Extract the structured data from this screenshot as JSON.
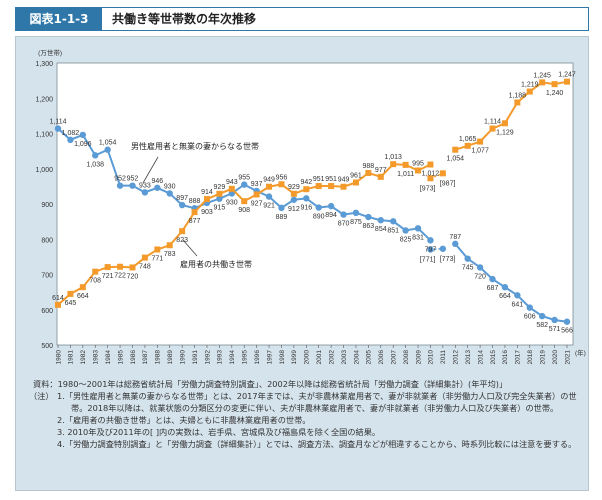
{
  "header": {
    "figure_label": "図表1-1-3",
    "title": "共働き等世帯数の年次推移"
  },
  "chart_data": {
    "type": "line",
    "title": "共働き等世帯数の年次推移",
    "ylabel": "(万世帯)",
    "xlabel": "(年)",
    "ylim": [
      500,
      1300
    ],
    "yticks": [
      "500",
      "600",
      "700",
      "800",
      "900",
      "1,000",
      "1,100",
      "1,200",
      "1,300"
    ],
    "x": [
      1980,
      1981,
      1982,
      1983,
      1984,
      1985,
      1986,
      1987,
      1988,
      1989,
      1990,
      1991,
      1992,
      1993,
      1994,
      1995,
      1996,
      1997,
      1998,
      1999,
      2000,
      2001,
      2002,
      2003,
      2004,
      2005,
      2006,
      2007,
      2008,
      2009,
      2010,
      2011,
      2012,
      2013,
      2014,
      2015,
      2016,
      2017,
      2018,
      2019,
      2020,
      2021
    ],
    "grid": false,
    "series": [
      {
        "name": "男性雇用者と無業の妻からなる世帯",
        "color": "#5b9bd5",
        "values": [
          1114,
          1082,
          1096,
          1038,
          1054,
          952,
          952,
          933,
          946,
          930,
          897,
          888,
          903,
          915,
          930,
          955,
          937,
          921,
          889,
          912,
          916,
          890,
          894,
          870,
          875,
          863,
          854,
          851,
          825,
          831,
          797,
          null,
          787,
          745,
          720,
          687,
          664,
          641,
          606,
          582,
          571,
          566
        ],
        "bracketed": [
          {
            "x": 2010,
            "value": 771,
            "label": "[771]"
          },
          {
            "x": 2011,
            "value": 773,
            "label": "[773]"
          }
        ]
      },
      {
        "name": "雇用者の共働き世帯",
        "color": "#f39a2b",
        "values": [
          614,
          645,
          664,
          708,
          721,
          722,
          720,
          748,
          771,
          783,
          823,
          877,
          914,
          929,
          943,
          908,
          927,
          949,
          956,
          929,
          942,
          951,
          951,
          949,
          961,
          988,
          977,
          1013,
          1011,
          995,
          1012,
          null,
          1054,
          1065,
          1077,
          1114,
          1129,
          1188,
          1219,
          1245,
          1240,
          1247
        ],
        "bracketed": [
          {
            "x": 2010,
            "value": 973,
            "label": "[973]"
          },
          {
            "x": 2011,
            "value": 987,
            "label": "[987]"
          }
        ]
      }
    ]
  },
  "notes": {
    "source": "資料：1980～2001年は総務省統計局「労働力調査特別調査」、2002年以降は総務省統計局「労働力調査（詳細集計）(年平均)」",
    "prefix": "（注）",
    "items": [
      "1.「男性雇用者と無業の妻からなる世帯」とは、2017年までは、夫が非農林業雇用者で、妻が非就業者（非労働力人口及び完全失業者）の世帯。2018年以降は、就業状態の分類区分の変更に伴い、夫が非農林業雇用者で、妻が非就業者（非労働力人口及び失業者）の世帯。",
      "2.「雇用者の共働き世帯」とは、夫婦ともに非農林業雇用者の世帯。",
      "3. 2010年及び2011年の[ ]内の実数は、岩手県、宮城県及び福島県を除く全国の結果。",
      "4.「労働力調査特別調査」と「労働力調査（詳細集計）」とでは、調査方法、調査月などが相違することから、時系列比較には注意を要する。"
    ]
  }
}
